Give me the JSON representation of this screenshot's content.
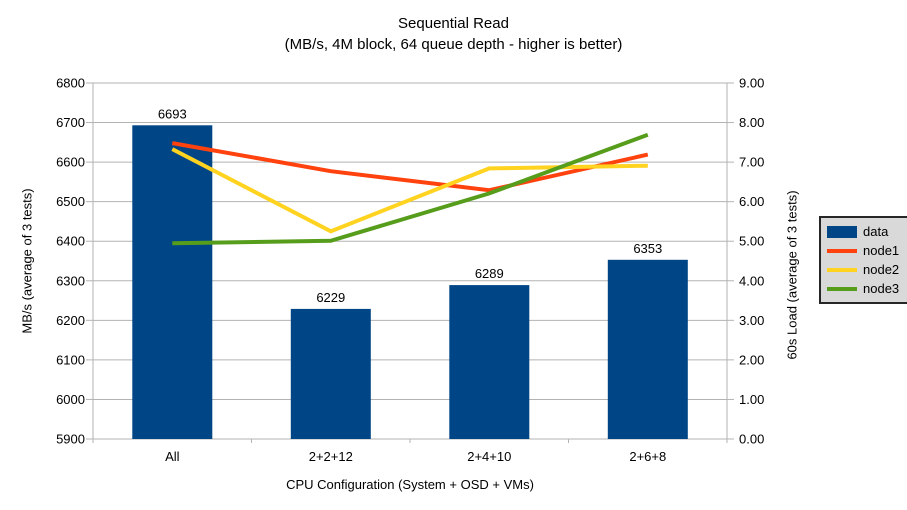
{
  "title": "Sequential Read",
  "subtitle": "(MB/s, 4M block, 64 queue depth - higher is better)",
  "chart_data": {
    "type": "bar+line",
    "categories": [
      "All",
      "2+2+12",
      "2+4+10",
      "2+6+8"
    ],
    "bar_series": {
      "name": "data",
      "axis": "left",
      "values": [
        6693,
        6229,
        6289,
        6353
      ],
      "labels": [
        "6693",
        "6229",
        "6289",
        "6353"
      ],
      "color": "#004586"
    },
    "line_series": [
      {
        "name": "node1",
        "axis": "right",
        "values": [
          7.48,
          6.77,
          6.29,
          7.19
        ],
        "color": "#ff420e"
      },
      {
        "name": "node2",
        "axis": "right",
        "values": [
          7.33,
          5.25,
          6.84,
          6.91
        ],
        "color": "#ffd320"
      },
      {
        "name": "node3",
        "axis": "right",
        "values": [
          4.95,
          5.01,
          6.21,
          7.69
        ],
        "color": "#579d1c"
      }
    ],
    "left_axis": {
      "title": "MB/s (average of 3 tests)",
      "min": 5900,
      "max": 6800,
      "step": 100,
      "tick_labels": [
        "5900",
        "6000",
        "6100",
        "6200",
        "6300",
        "6400",
        "6500",
        "6600",
        "6700",
        "6800"
      ]
    },
    "right_axis": {
      "title": "60s Load (average of 3 tests)",
      "min": 0,
      "max": 9,
      "step": 1,
      "tick_labels": [
        "0.00",
        "1.00",
        "2.00",
        "3.00",
        "4.00",
        "5.00",
        "6.00",
        "7.00",
        "8.00",
        "9.00"
      ]
    },
    "x_axis": {
      "title": "CPU Configuration (System + OSD + VMs)"
    },
    "grid": true,
    "legend_position": "right"
  },
  "legend": {
    "items": [
      {
        "label": "data",
        "type": "box",
        "color": "#004586"
      },
      {
        "label": "node1",
        "type": "line",
        "color": "#ff420e"
      },
      {
        "label": "node2",
        "type": "line",
        "color": "#ffd320"
      },
      {
        "label": "node3",
        "type": "line",
        "color": "#579d1c"
      }
    ]
  },
  "colors": {
    "background": "#ffffff",
    "grid": "#b3b3b3",
    "text": "#000000",
    "legend_bg": "#d9d9d9",
    "legend_border": "#262626"
  }
}
